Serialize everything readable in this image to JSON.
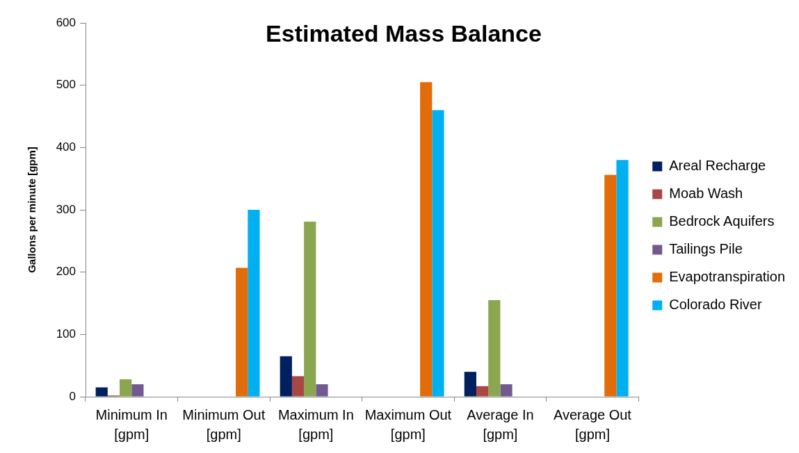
{
  "chart_data": {
    "type": "bar",
    "title": "Estimated Mass Balance",
    "ylabel": "Gallons per minute [gpm]",
    "categories": [
      "Minimum In [gpm]",
      "Minimum Out [gpm]",
      "Maximum In [gpm]",
      "Maximum Out [gpm]",
      "Average In [gpm]",
      "Average Out [gpm]"
    ],
    "series": [
      {
        "name": "Areal Recharge",
        "color": "#002060",
        "values": [
          15,
          null,
          65,
          null,
          40,
          null
        ]
      },
      {
        "name": "Moab Wash",
        "color": "#a94745",
        "values": [
          2,
          null,
          33,
          null,
          17,
          null
        ]
      },
      {
        "name": "Bedrock Aquifers",
        "color": "#8ba650",
        "values": [
          28,
          null,
          281,
          null,
          155,
          null
        ]
      },
      {
        "name": "Tailings Pile",
        "color": "#725990",
        "values": [
          20,
          null,
          20,
          null,
          20,
          null
        ]
      },
      {
        "name": "Evapotranspiration",
        "color": "#e36c0a",
        "values": [
          null,
          207,
          null,
          505,
          null,
          356
        ]
      },
      {
        "name": "Colorado River",
        "color": "#00b0f0",
        "values": [
          null,
          300,
          null,
          460,
          null,
          380
        ]
      }
    ],
    "ylim": [
      0,
      600
    ],
    "yticks": [
      0,
      100,
      200,
      300,
      400,
      500,
      600
    ],
    "grid": false,
    "legend": "right"
  }
}
